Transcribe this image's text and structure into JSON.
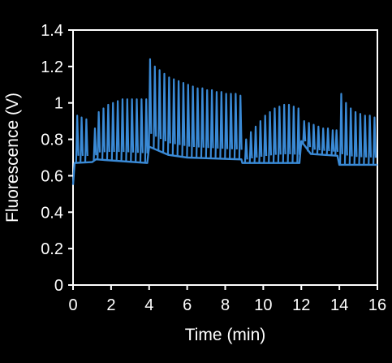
{
  "chart_data": {
    "type": "line",
    "xlabel": "Time (min)",
    "ylabel": "Fluorescence (V)",
    "xlim": [
      0,
      16
    ],
    "ylim": [
      0,
      1.4
    ],
    "x_ticks": [
      0,
      2,
      4,
      6,
      8,
      10,
      12,
      14,
      16
    ],
    "y_ticks": [
      0,
      0.2,
      0.4,
      0.6,
      0.8,
      1,
      1.2,
      1.4
    ],
    "y_tick_labels": [
      "0",
      "0.2",
      "0.4",
      "0.6",
      "0.8",
      "1",
      "1.2",
      "1.4"
    ],
    "grid": false,
    "legend": "none",
    "line_color": "#3a8ad6",
    "axis_color": "#ffffff",
    "background": "#000000",
    "baseline": [
      {
        "t": 0.0,
        "y": 0.55
      },
      {
        "t": 0.08,
        "y": 0.67
      },
      {
        "t": 1.0,
        "y": 0.675
      },
      {
        "t": 1.2,
        "y": 0.69
      },
      {
        "t": 3.9,
        "y": 0.67
      },
      {
        "t": 4.0,
        "y": 0.76
      },
      {
        "t": 5.0,
        "y": 0.715
      },
      {
        "t": 6.0,
        "y": 0.7
      },
      {
        "t": 8.85,
        "y": 0.69
      },
      {
        "t": 8.9,
        "y": 0.67
      },
      {
        "t": 11.9,
        "y": 0.67
      },
      {
        "t": 12.0,
        "y": 0.79
      },
      {
        "t": 12.5,
        "y": 0.72
      },
      {
        "t": 13.9,
        "y": 0.71
      },
      {
        "t": 14.0,
        "y": 0.66
      },
      {
        "t": 16.0,
        "y": 0.66
      }
    ],
    "peaks": [
      {
        "t": 0.22,
        "y": 0.93
      },
      {
        "t": 0.45,
        "y": 0.92
      },
      {
        "t": 0.7,
        "y": 0.91
      },
      {
        "t": 1.15,
        "y": 0.86
      },
      {
        "t": 1.35,
        "y": 0.95
      },
      {
        "t": 1.6,
        "y": 0.97
      },
      {
        "t": 1.85,
        "y": 0.99
      },
      {
        "t": 2.1,
        "y": 1.0
      },
      {
        "t": 2.35,
        "y": 1.01
      },
      {
        "t": 2.6,
        "y": 1.02
      },
      {
        "t": 2.85,
        "y": 1.02
      },
      {
        "t": 3.1,
        "y": 1.02
      },
      {
        "t": 3.35,
        "y": 1.02
      },
      {
        "t": 3.6,
        "y": 1.02
      },
      {
        "t": 3.85,
        "y": 1.02
      },
      {
        "t": 4.05,
        "y": 1.24
      },
      {
        "t": 4.3,
        "y": 1.2
      },
      {
        "t": 4.55,
        "y": 1.18
      },
      {
        "t": 4.8,
        "y": 1.16
      },
      {
        "t": 5.05,
        "y": 1.14
      },
      {
        "t": 5.3,
        "y": 1.13
      },
      {
        "t": 5.55,
        "y": 1.12
      },
      {
        "t": 5.8,
        "y": 1.11
      },
      {
        "t": 6.05,
        "y": 1.1
      },
      {
        "t": 6.3,
        "y": 1.09
      },
      {
        "t": 6.55,
        "y": 1.08
      },
      {
        "t": 6.8,
        "y": 1.08
      },
      {
        "t": 7.05,
        "y": 1.07
      },
      {
        "t": 7.3,
        "y": 1.07
      },
      {
        "t": 7.55,
        "y": 1.06
      },
      {
        "t": 7.8,
        "y": 1.06
      },
      {
        "t": 8.05,
        "y": 1.05
      },
      {
        "t": 8.3,
        "y": 1.05
      },
      {
        "t": 8.55,
        "y": 1.05
      },
      {
        "t": 8.8,
        "y": 1.04
      },
      {
        "t": 9.1,
        "y": 0.8
      },
      {
        "t": 9.35,
        "y": 0.84
      },
      {
        "t": 9.6,
        "y": 0.87
      },
      {
        "t": 9.85,
        "y": 0.9
      },
      {
        "t": 10.1,
        "y": 0.93
      },
      {
        "t": 10.35,
        "y": 0.95
      },
      {
        "t": 10.6,
        "y": 0.97
      },
      {
        "t": 10.85,
        "y": 0.98
      },
      {
        "t": 11.1,
        "y": 0.99
      },
      {
        "t": 11.35,
        "y": 0.99
      },
      {
        "t": 11.6,
        "y": 0.98
      },
      {
        "t": 11.85,
        "y": 0.97
      },
      {
        "t": 12.15,
        "y": 0.9
      },
      {
        "t": 12.4,
        "y": 0.89
      },
      {
        "t": 12.65,
        "y": 0.88
      },
      {
        "t": 12.9,
        "y": 0.87
      },
      {
        "t": 13.15,
        "y": 0.86
      },
      {
        "t": 13.4,
        "y": 0.86
      },
      {
        "t": 13.65,
        "y": 0.85
      },
      {
        "t": 13.85,
        "y": 0.85
      },
      {
        "t": 14.1,
        "y": 1.05
      },
      {
        "t": 14.35,
        "y": 1.0
      },
      {
        "t": 14.6,
        "y": 0.97
      },
      {
        "t": 14.85,
        "y": 0.95
      },
      {
        "t": 15.1,
        "y": 0.94
      },
      {
        "t": 15.35,
        "y": 0.93
      },
      {
        "t": 15.6,
        "y": 0.93
      },
      {
        "t": 15.85,
        "y": 0.92
      }
    ]
  }
}
